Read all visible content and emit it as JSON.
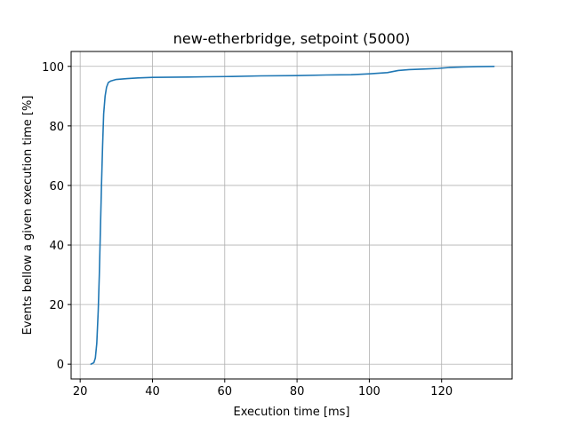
{
  "chart_data": {
    "type": "line",
    "title": "new-etherbridge, setpoint (5000)",
    "xlabel": "Execution time [ms]",
    "ylabel": "Events bellow a given execution time [%]",
    "xlim": [
      17.5,
      139.5
    ],
    "ylim": [
      -5,
      105
    ],
    "xticks": [
      20,
      40,
      60,
      80,
      100,
      120
    ],
    "yticks": [
      0,
      20,
      40,
      60,
      80,
      100
    ],
    "grid": true,
    "series": [
      {
        "color": "#1f77b4",
        "points": [
          [
            23.0,
            0
          ],
          [
            23.8,
            0.5
          ],
          [
            24.2,
            2
          ],
          [
            24.6,
            7
          ],
          [
            25.0,
            18
          ],
          [
            25.3,
            30
          ],
          [
            25.6,
            45
          ],
          [
            25.9,
            60
          ],
          [
            26.2,
            73
          ],
          [
            26.5,
            84
          ],
          [
            26.9,
            90
          ],
          [
            27.3,
            93
          ],
          [
            27.8,
            94.6
          ],
          [
            28.5,
            95.1
          ],
          [
            30.0,
            95.6
          ],
          [
            33.0,
            95.9
          ],
          [
            36.0,
            96.1
          ],
          [
            40.0,
            96.3
          ],
          [
            50.0,
            96.4
          ],
          [
            55.0,
            96.5
          ],
          [
            62.0,
            96.6
          ],
          [
            70.0,
            96.8
          ],
          [
            80.0,
            96.9
          ],
          [
            88.0,
            97.1
          ],
          [
            95.0,
            97.2
          ],
          [
            100.0,
            97.5
          ],
          [
            105.0,
            97.9
          ],
          [
            108.0,
            98.6
          ],
          [
            111.0,
            98.9
          ],
          [
            115.0,
            99.1
          ],
          [
            119.0,
            99.3
          ],
          [
            122.0,
            99.6
          ],
          [
            126.0,
            99.8
          ],
          [
            130.0,
            99.9
          ],
          [
            134.5,
            100
          ]
        ]
      }
    ]
  }
}
